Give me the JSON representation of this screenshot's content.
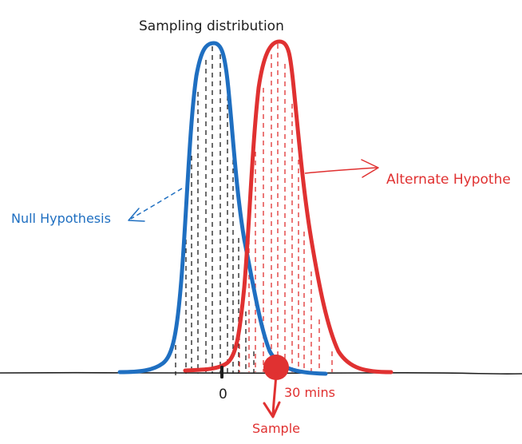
{
  "title": "Sampling distribution",
  "labels": {
    "null_hypothesis": "Null Hypothesis",
    "alternate_hypothesis": "Alternate Hypothe",
    "zero_tick": "0",
    "thirty_tick": "30 mins",
    "sample": "Sample"
  },
  "colors": {
    "null_curve": "#1f6fc1",
    "alt_curve": "#e03131",
    "ink": "#1e1e1e",
    "axis": "#1e1e1e",
    "background": "#ffffff"
  }
}
